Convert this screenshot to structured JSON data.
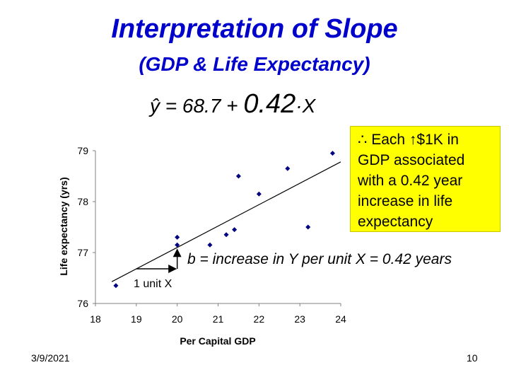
{
  "slide": {
    "title": "Interpretation of Slope",
    "subtitle": "(GDP & Life Expectancy)",
    "equation_prefix": "ŷ = 68.7 + ",
    "equation_coef": "0.42",
    "equation_suffix": "·X",
    "callout": "∴ Each ↑$1K in GDP associated with a 0.42 year increase in life expectancy",
    "b_note": "b = increase in Y per unit X = 0.42 years",
    "unit_label": "1 unit X",
    "date": "3/9/2021",
    "page_number": "10"
  },
  "chart_data": {
    "type": "scatter",
    "xlabel": "Per Capital GDP",
    "ylabel": "Life expectancy (yrs)",
    "xlim": [
      18,
      24
    ],
    "ylim": [
      76,
      79
    ],
    "xticks": [
      "18",
      "19",
      "20",
      "21",
      "22",
      "23",
      "24"
    ],
    "yticks": [
      "76",
      "77",
      "78",
      "79"
    ],
    "points": [
      {
        "x": 18.5,
        "y": 76.35
      },
      {
        "x": 20.0,
        "y": 77.15
      },
      {
        "x": 20.0,
        "y": 77.3
      },
      {
        "x": 20.8,
        "y": 77.15
      },
      {
        "x": 21.2,
        "y": 77.35
      },
      {
        "x": 21.4,
        "y": 77.45
      },
      {
        "x": 21.5,
        "y": 78.5
      },
      {
        "x": 22.0,
        "y": 78.15
      },
      {
        "x": 22.7,
        "y": 78.65
      },
      {
        "x": 23.2,
        "y": 77.5
      },
      {
        "x": 23.8,
        "y": 78.95
      }
    ],
    "fit_line": {
      "intercept": 68.7,
      "slope": 0.42
    },
    "slope_triangle": {
      "x0": 19.0,
      "x1": 20.0
    },
    "grid": false,
    "marker_color": "#000080"
  }
}
